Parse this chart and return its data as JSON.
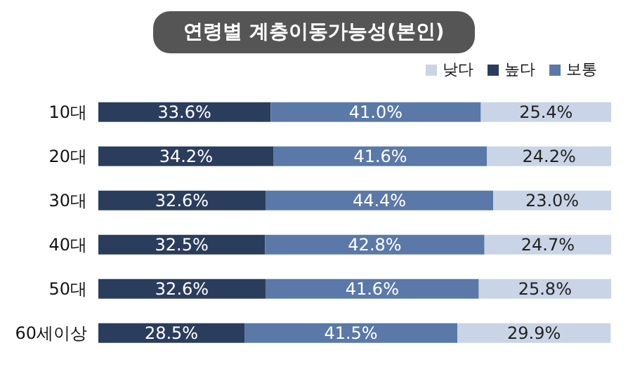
{
  "chart_data": {
    "type": "bar",
    "title": "연령별 계층이동가능성(본인)",
    "orientation": "horizontal",
    "stacked": true,
    "legend": "top right",
    "categories": [
      "10대",
      "20대",
      "30대",
      "40대",
      "50대",
      "60세이상"
    ],
    "series": [
      {
        "name": "높다",
        "color": "#2b3d5c",
        "values": [
          33.6,
          34.2,
          32.6,
          32.5,
          32.6,
          28.5
        ],
        "value_labels": [
          "33.6%",
          "34.2%",
          "32.6%",
          "32.5%",
          "32.6%",
          "28.5%"
        ]
      },
      {
        "name": "보통",
        "color": "#5a79a8",
        "values": [
          41.0,
          41.6,
          44.4,
          42.8,
          41.6,
          41.5
        ],
        "value_labels": [
          "41.0%",
          "41.6%",
          "44.4%",
          "42.8%",
          "41.6%",
          "41.5%"
        ]
      },
      {
        "name": "낮다",
        "color": "#c9d5e6",
        "values": [
          25.4,
          24.2,
          23.0,
          24.7,
          25.8,
          29.9
        ],
        "value_labels": [
          "25.4%",
          "24.2%",
          "23.0%",
          "24.7%",
          "25.8%",
          "29.9%"
        ]
      }
    ]
  }
}
